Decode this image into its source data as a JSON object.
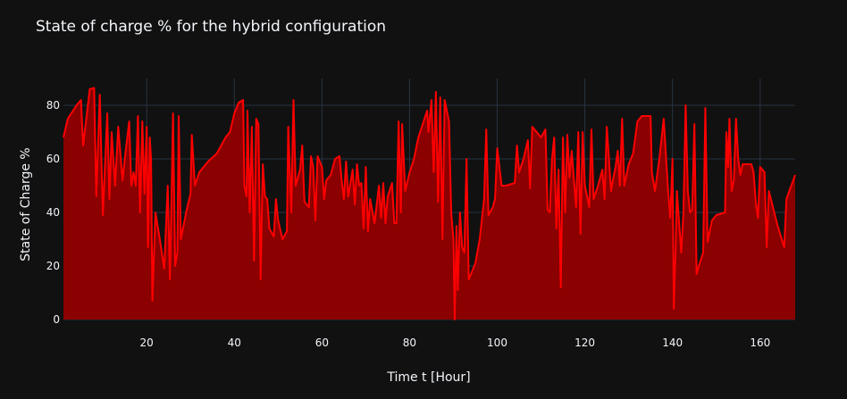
{
  "chart_data": {
    "type": "area",
    "title": "State of charge % for the hybrid configuration",
    "xlabel": "Time t [Hour]",
    "ylabel": "State of Charge %",
    "xlim": [
      1,
      168
    ],
    "ylim": [
      0,
      90
    ],
    "xticks": [
      20,
      40,
      60,
      80,
      100,
      120,
      140,
      160
    ],
    "yticks": [
      0,
      20,
      40,
      60,
      80
    ],
    "grid": true,
    "series": [
      {
        "name": "State of Charge %",
        "color": "#ff0000",
        "fill_color": "#8b0000",
        "x": [
          1,
          2,
          4,
          5,
          5.5,
          7,
          8,
          8.5,
          9.3,
          10,
          11,
          11.5,
          12,
          12.8,
          13.5,
          14.5,
          15,
          16,
          16.5,
          17,
          17.5,
          18,
          18.5,
          19,
          19.5,
          20,
          20.3,
          20.7,
          21,
          21.3,
          22,
          23,
          24,
          24.8,
          25.3,
          25.7,
          26,
          26.5,
          27,
          27.3,
          27.8,
          29,
          30,
          30.3,
          31,
          32,
          34,
          36,
          38,
          39,
          40,
          41,
          42,
          42.3,
          42.8,
          43,
          43.5,
          44,
          44.5,
          45,
          45.5,
          46,
          46.5,
          47,
          47.5,
          48,
          49,
          49.5,
          50,
          51,
          52,
          52.3,
          53,
          53.5,
          54,
          55,
          55.5,
          56,
          57,
          57.5,
          58,
          58.5,
          59,
          60,
          60.5,
          61,
          62,
          63,
          64,
          64.5,
          65,
          65.5,
          66,
          67,
          67.5,
          68,
          68.5,
          69,
          69.5,
          70,
          70.5,
          71,
          72,
          73,
          73.5,
          74,
          74.5,
          75,
          76,
          76.5,
          77,
          77.5,
          78,
          78.3,
          79,
          80,
          81,
          82,
          83,
          84,
          84.3,
          85,
          85.5,
          86,
          86.5,
          87,
          87.5,
          88,
          89,
          89.5,
          90,
          90.3,
          90.7,
          91,
          91.5,
          92,
          92.5,
          93,
          93.5,
          94,
          95,
          96,
          97,
          97.5,
          98,
          99,
          99.5,
          100,
          100.5,
          101,
          102,
          104,
          104.5,
          105,
          106,
          107,
          107.5,
          108,
          109,
          110,
          111,
          111.5,
          112,
          112.5,
          113,
          113.5,
          114,
          114.5,
          115,
          115.5,
          116,
          116.5,
          117,
          118,
          118.5,
          119,
          119.5,
          120,
          121,
          121.5,
          122,
          123,
          124,
          124.5,
          125,
          126,
          126.5,
          127,
          127.5,
          128,
          128.5,
          129,
          130,
          131,
          132,
          133,
          135,
          135.3,
          136,
          137,
          138,
          139,
          139.5,
          140,
          140.3,
          140.7,
          141,
          142,
          142.5,
          143,
          143.5,
          144,
          144.5,
          145,
          145.5,
          146,
          147,
          147.5,
          148,
          149,
          150,
          152,
          152.3,
          152.7,
          153,
          153.5,
          154,
          154.5,
          155,
          155.5,
          156,
          158,
          158.5,
          159,
          159.5,
          160,
          161,
          161.5,
          162,
          164,
          165.5,
          166,
          168
        ],
        "values": [
          68,
          75,
          80,
          82,
          65,
          86,
          86.5,
          46,
          84,
          39,
          77,
          45,
          70,
          50,
          72,
          52,
          60,
          74,
          50,
          55,
          50,
          76,
          40,
          74,
          47,
          72,
          27,
          68,
          60,
          7,
          40,
          30,
          19,
          50,
          15,
          48,
          77,
          20,
          25,
          76,
          30,
          40,
          47,
          69,
          50,
          55,
          59,
          62,
          68,
          70,
          77,
          81,
          82,
          50,
          46,
          78,
          40,
          72,
          22,
          75,
          73,
          15,
          58,
          46,
          45,
          34,
          31,
          45,
          37,
          30,
          33,
          72,
          40,
          82,
          50,
          56,
          65,
          44,
          42,
          61,
          57,
          37,
          61,
          57,
          45,
          52,
          54,
          60,
          61,
          52,
          45,
          59,
          46,
          56,
          43,
          58,
          50,
          51,
          34,
          57,
          33,
          45,
          36,
          50,
          38,
          51,
          36,
          46,
          51,
          36,
          36,
          74,
          40,
          73,
          48,
          55,
          60,
          68,
          73,
          78,
          70,
          82,
          55,
          85,
          44,
          83,
          30,
          82,
          74,
          40,
          30,
          0,
          35,
          11,
          40,
          27,
          25,
          60,
          15,
          17,
          21,
          30,
          45,
          71,
          39,
          42,
          45,
          64,
          57,
          50,
          50,
          51,
          65,
          55,
          60,
          67,
          49,
          72,
          70,
          68,
          71,
          41,
          40,
          60,
          68,
          34,
          56,
          12,
          68,
          40,
          69,
          53,
          63,
          42,
          70,
          32,
          70,
          50,
          42,
          71,
          45,
          50,
          56,
          45,
          72,
          48,
          53,
          57,
          63,
          50,
          75,
          50,
          58,
          62,
          74,
          76,
          76,
          55,
          48,
          60,
          75,
          48,
          38,
          60,
          4,
          26,
          48,
          25,
          40,
          80,
          48,
          40,
          41,
          73,
          17,
          20,
          25,
          79,
          29,
          37,
          39,
          40,
          70,
          57,
          75,
          48,
          52,
          75,
          60,
          54,
          58,
          58,
          55,
          44,
          38,
          57,
          55,
          27,
          48,
          35,
          27,
          45,
          54
        ]
      }
    ]
  }
}
